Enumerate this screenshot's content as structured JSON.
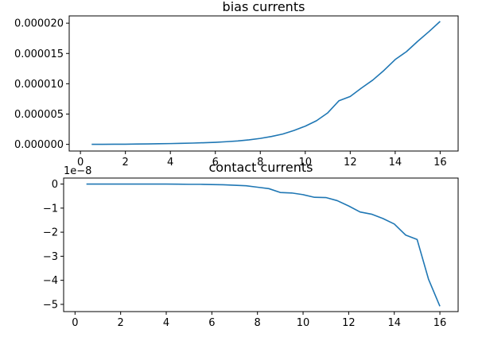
{
  "chart_data": [
    {
      "type": "line",
      "title": "bias currents",
      "xlabel": "",
      "ylabel": "",
      "xlim": [
        -0.5,
        16.8
      ],
      "ylim": [
        -1.1e-06,
        2.12e-05
      ],
      "x_ticks": [
        0,
        2,
        4,
        6,
        8,
        10,
        12,
        14,
        16
      ],
      "x_tick_labels": [
        "0",
        "2",
        "4",
        "6",
        "8",
        "10",
        "12",
        "14",
        "16"
      ],
      "y_ticks": [
        0,
        5e-06,
        1e-05,
        1.5e-05,
        2e-05
      ],
      "y_tick_labels": [
        "0.000000",
        "0.000005",
        "0.000010",
        "0.000015",
        "0.000020"
      ],
      "offset_text": "",
      "color": "#1f77b4",
      "grid": false,
      "series": [
        {
          "x": [
            0.5,
            1,
            1.5,
            2,
            2.5,
            3,
            3.5,
            4,
            4.5,
            5,
            5.5,
            6,
            6.5,
            7,
            7.5,
            8,
            8.5,
            9,
            9.5,
            10,
            10.5,
            11,
            11.5,
            12,
            12.5,
            13,
            13.5,
            14,
            14.5,
            15,
            15.5,
            16
          ],
          "y": [
            0.0,
            1e-08,
            2e-08,
            3e-08,
            5e-08,
            7e-08,
            1e-07,
            1.3e-07,
            1.7e-07,
            2.1e-07,
            2.7e-07,
            3.4e-07,
            4.4e-07,
            5.7e-07,
            7.5e-07,
            9.8e-07,
            1.3e-06,
            1.7e-06,
            2.3e-06,
            3e-06,
            3.9e-06,
            5.2e-06,
            7.2e-06,
            7.9e-06,
            9.3e-06,
            1.06e-05,
            1.22e-05,
            1.4e-05,
            1.53e-05,
            1.7e-05,
            1.86e-05,
            2.03e-05
          ]
        }
      ]
    },
    {
      "type": "line",
      "title": "contact currents",
      "xlabel": "",
      "ylabel": "",
      "xlim": [
        -0.5,
        16.8
      ],
      "ylim": [
        -5.3,
        0.25
      ],
      "x_ticks": [
        0,
        2,
        4,
        6,
        8,
        10,
        12,
        14,
        16
      ],
      "x_tick_labels": [
        "0",
        "2",
        "4",
        "6",
        "8",
        "10",
        "12",
        "14",
        "16"
      ],
      "y_ticks": [
        0,
        -1,
        -2,
        -3,
        -4,
        -5
      ],
      "y_tick_labels": [
        "0",
        "−1",
        "−2",
        "−3",
        "−4",
        "−5"
      ],
      "offset_text": "1e−8",
      "color": "#1f77b4",
      "grid": false,
      "series": [
        {
          "x": [
            0.5,
            1,
            1.5,
            2,
            2.5,
            3,
            3.5,
            4,
            4.5,
            5,
            5.5,
            6,
            6.5,
            7,
            7.5,
            8,
            8.5,
            9,
            9.5,
            10,
            10.5,
            11,
            11.5,
            12,
            12.5,
            13,
            13.5,
            14,
            14.5,
            15,
            15.5,
            16
          ],
          "y": [
            0.0,
            0.0,
            0.0,
            0.0,
            0.0,
            0.0,
            0.0,
            0.0,
            -0.005,
            -0.01,
            -0.01,
            -0.02,
            -0.03,
            -0.05,
            -0.07,
            -0.13,
            -0.19,
            -0.35,
            -0.37,
            -0.44,
            -0.55,
            -0.56,
            -0.69,
            -0.91,
            -1.16,
            -1.25,
            -1.43,
            -1.66,
            -2.12,
            -2.3,
            -3.95,
            -5.08
          ]
        }
      ]
    }
  ]
}
